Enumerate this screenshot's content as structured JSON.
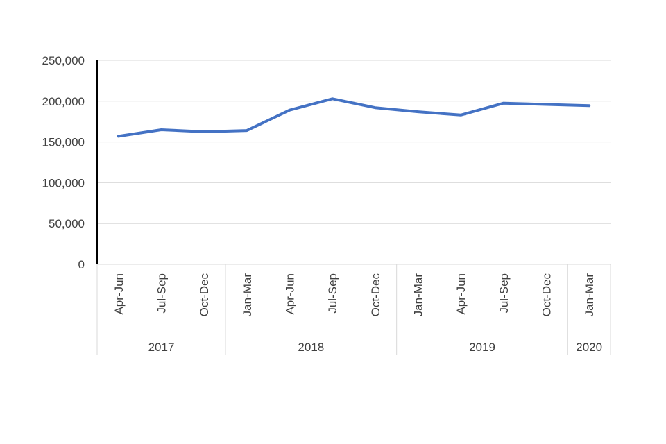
{
  "chart_data": {
    "type": "line",
    "categories": [
      "Apr-Jun",
      "Jul-Sep",
      "Oct-Dec",
      "Jan-Mar",
      "Apr-Jun",
      "Jul-Sep",
      "Oct-Dec",
      "Jan-Mar",
      "Apr-Jun",
      "Jul-Sep",
      "Oct-Dec",
      "Jan-Mar"
    ],
    "groups": [
      {
        "label": "2017",
        "count": 3
      },
      {
        "label": "2018",
        "count": 4
      },
      {
        "label": "2019",
        "count": 4
      },
      {
        "label": "2020",
        "count": 1
      }
    ],
    "series": [
      {
        "values": [
          157000,
          165000,
          162500,
          164000,
          189000,
          203000,
          192000,
          187000,
          183000,
          197500,
          196000,
          194500
        ]
      }
    ],
    "yticks": [
      "0",
      "50,000",
      "100,000",
      "150,000",
      "200,000",
      "250,000"
    ],
    "ylim": [
      0,
      250000
    ],
    "title": "",
    "xlabel": "",
    "ylabel": "",
    "grid": true,
    "line_color": "#4472c4"
  }
}
